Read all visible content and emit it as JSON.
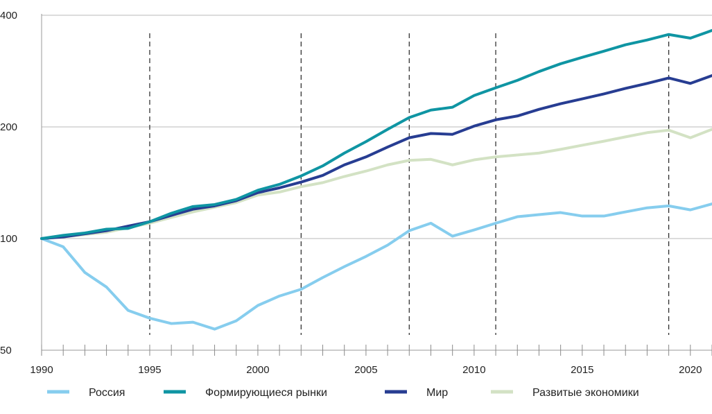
{
  "chart_data": {
    "type": "line",
    "title": "",
    "xlabel": "",
    "ylabel": "",
    "y_scale": "log",
    "ylim": [
      50,
      400
    ],
    "xlim": [
      1990,
      2021
    ],
    "y_ticks": [
      50,
      100,
      200,
      400
    ],
    "x_ticks": [
      1990,
      1995,
      2000,
      2005,
      2010,
      2015,
      2020
    ],
    "x_minor_ticks_every_year": true,
    "grid": "horizontal",
    "legend_position": "bottom",
    "vertical_dashed_markers": [
      1995,
      2002,
      2007,
      2011,
      2019
    ],
    "x": [
      1990,
      1991,
      1992,
      1993,
      1994,
      1995,
      1996,
      1997,
      1998,
      1999,
      2000,
      2001,
      2002,
      2003,
      2004,
      2005,
      2006,
      2007,
      2008,
      2009,
      2010,
      2011,
      2012,
      2013,
      2014,
      2015,
      2016,
      2017,
      2018,
      2019,
      2020,
      2021
    ],
    "series": [
      {
        "name": "Россия",
        "color": "#86cdee",
        "values": [
          100,
          95,
          81,
          74,
          64,
          61,
          59,
          59.5,
          57,
          60,
          66,
          70,
          73,
          78.5,
          84,
          89.5,
          96,
          105,
          110,
          101.5,
          105.5,
          110,
          114.5,
          116,
          117.5,
          115,
          115,
          118,
          121,
          122.5,
          119.5,
          124
        ]
      },
      {
        "name": "Формирующиеся рынки",
        "color": "#0f95a3",
        "values": [
          100,
          102,
          103.5,
          106,
          106.5,
          111,
          117,
          122,
          123.5,
          127.5,
          135,
          140,
          147.5,
          157,
          170,
          182.5,
          197,
          212,
          222,
          226,
          243,
          255,
          267,
          282,
          296,
          308,
          320,
          333,
          343,
          355,
          347,
          364
        ]
      },
      {
        "name": "Мир",
        "color": "#273d92",
        "values": [
          100,
          101,
          103,
          105,
          108,
          111,
          115.5,
          120,
          122.5,
          126.5,
          133,
          137,
          142,
          148,
          158,
          166,
          176.5,
          187,
          192,
          191,
          201,
          209,
          214,
          223,
          231,
          238,
          245.5,
          254,
          262,
          271,
          262,
          275
        ]
      },
      {
        "name": "Развитые экономики",
        "color": "#d3e2c4",
        "values": [
          100,
          101,
          102.5,
          104,
          107,
          110,
          114,
          118,
          121.5,
          125,
          131,
          133.5,
          138,
          141.5,
          147,
          152,
          158,
          162.5,
          163.5,
          158,
          163,
          166,
          168,
          170,
          174,
          178.5,
          183,
          188,
          193,
          196,
          187,
          197
        ]
      }
    ]
  }
}
